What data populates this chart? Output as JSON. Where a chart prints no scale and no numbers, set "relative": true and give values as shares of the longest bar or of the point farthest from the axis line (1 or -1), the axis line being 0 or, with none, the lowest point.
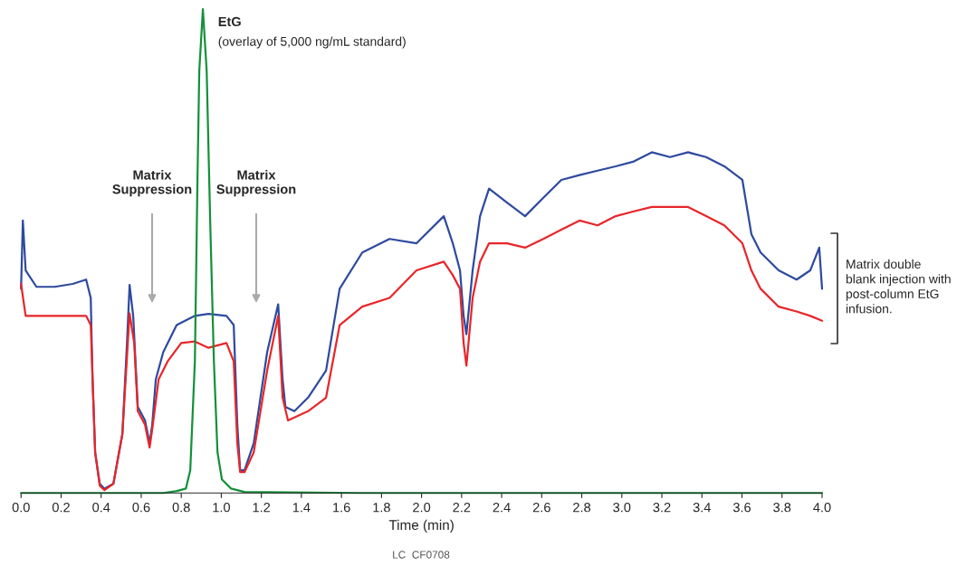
{
  "chart_data": {
    "type": "line",
    "relative": true,
    "xlabel": "Time (min)",
    "xlim": [
      0,
      4
    ],
    "xticks": [
      {
        "value": 0,
        "label": "0.0"
      },
      {
        "value": 0.2,
        "label": "0.2"
      },
      {
        "value": 0.4,
        "label": "0.4"
      },
      {
        "value": 0.6,
        "label": "0.6"
      },
      {
        "value": 0.8,
        "label": "0.8"
      },
      {
        "value": 1,
        "label": "1.0"
      },
      {
        "value": 1.2,
        "label": "1.2"
      },
      {
        "value": 1.4,
        "label": "1.4"
      },
      {
        "value": 1.6,
        "label": "1.6"
      },
      {
        "value": 1.8,
        "label": "1.8"
      },
      {
        "value": 2,
        "label": "2.0"
      },
      {
        "value": 2.2,
        "label": "2.2"
      },
      {
        "value": 2.4,
        "label": "2.4"
      },
      {
        "value": 2.6,
        "label": "2.6"
      },
      {
        "value": 2.8,
        "label": "2.8"
      },
      {
        "value": 3,
        "label": "3.0"
      },
      {
        "value": 3.2,
        "label": "3.2"
      },
      {
        "value": 3.4,
        "label": "3.4"
      },
      {
        "value": 3.6,
        "label": "3.6"
      },
      {
        "value": 3.8,
        "label": "3.8"
      },
      {
        "value": 4,
        "label": "4.0"
      }
    ],
    "grid": false,
    "legend": false,
    "tick_labels": "x",
    "series": [
      {
        "color": "#2e4a9e",
        "x": [
          0.0,
          0.009,
          0.023,
          0.077,
          0.167,
          0.258,
          0.325,
          0.348,
          0.357,
          0.37,
          0.393,
          0.416,
          0.461,
          0.506,
          0.529,
          0.542,
          0.56,
          0.583,
          0.619,
          0.642,
          0.655,
          0.673,
          0.71,
          0.777,
          0.868,
          0.936,
          1.026,
          1.062,
          1.08,
          1.094,
          1.116,
          1.162,
          1.229,
          1.284,
          1.306,
          1.32,
          1.365,
          1.433,
          1.523,
          1.591,
          1.704,
          1.84,
          1.975,
          2.111,
          2.156,
          2.192,
          2.21,
          2.224,
          2.255,
          2.292,
          2.337,
          2.427,
          2.517,
          2.608,
          2.698,
          2.789,
          2.879,
          2.969,
          3.06,
          3.15,
          3.241,
          3.331,
          3.421,
          3.512,
          3.602,
          3.647,
          3.693,
          3.783,
          3.873,
          3.941,
          3.986,
          4.0
        ],
        "values": [
          0.422,
          0.563,
          0.46,
          0.426,
          0.426,
          0.432,
          0.441,
          0.403,
          0.235,
          0.084,
          0.019,
          0.009,
          0.019,
          0.122,
          0.31,
          0.43,
          0.366,
          0.178,
          0.15,
          0.103,
          0.141,
          0.235,
          0.291,
          0.347,
          0.366,
          0.37,
          0.366,
          0.347,
          0.141,
          0.047,
          0.047,
          0.103,
          0.291,
          0.39,
          0.235,
          0.178,
          0.169,
          0.197,
          0.253,
          0.422,
          0.497,
          0.525,
          0.516,
          0.572,
          0.516,
          0.46,
          0.366,
          0.328,
          0.46,
          0.572,
          0.629,
          0.6,
          0.572,
          0.61,
          0.647,
          0.657,
          0.666,
          0.675,
          0.685,
          0.704,
          0.694,
          0.704,
          0.694,
          0.675,
          0.647,
          0.535,
          0.497,
          0.46,
          0.441,
          0.46,
          0.507,
          0.422
        ]
      },
      {
        "color": "#e8262a",
        "x": [
          0.0,
          0.023,
          0.167,
          0.325,
          0.348,
          0.37,
          0.393,
          0.416,
          0.461,
          0.506,
          0.542,
          0.565,
          0.583,
          0.619,
          0.642,
          0.655,
          0.687,
          0.732,
          0.8,
          0.868,
          0.936,
          1.026,
          1.062,
          1.08,
          1.094,
          1.116,
          1.162,
          1.229,
          1.284,
          1.306,
          1.333,
          1.433,
          1.523,
          1.591,
          1.704,
          1.84,
          1.975,
          2.111,
          2.156,
          2.192,
          2.21,
          2.224,
          2.255,
          2.292,
          2.337,
          2.427,
          2.517,
          2.608,
          2.698,
          2.789,
          2.879,
          2.969,
          3.06,
          3.15,
          3.241,
          3.331,
          3.421,
          3.512,
          3.602,
          3.647,
          3.693,
          3.783,
          3.873,
          3.941,
          4.0
        ],
        "values": [
          0.432,
          0.366,
          0.366,
          0.366,
          0.347,
          0.084,
          0.015,
          0.006,
          0.019,
          0.122,
          0.371,
          0.31,
          0.169,
          0.141,
          0.094,
          0.131,
          0.235,
          0.272,
          0.31,
          0.313,
          0.3,
          0.31,
          0.272,
          0.103,
          0.043,
          0.043,
          0.084,
          0.253,
          0.366,
          0.197,
          0.15,
          0.169,
          0.197,
          0.347,
          0.385,
          0.403,
          0.46,
          0.478,
          0.45,
          0.422,
          0.31,
          0.263,
          0.403,
          0.478,
          0.516,
          0.516,
          0.507,
          0.525,
          0.544,
          0.563,
          0.553,
          0.572,
          0.582,
          0.591,
          0.591,
          0.591,
          0.572,
          0.553,
          0.516,
          0.46,
          0.422,
          0.385,
          0.375,
          0.366,
          0.356
        ]
      },
      {
        "color": "#14913a",
        "x": [
          0.0,
          0.71,
          0.777,
          0.823,
          0.845,
          0.868,
          0.881,
          0.89,
          0.908,
          0.927,
          0.945,
          0.963,
          0.981,
          1.003,
          1.049,
          1.116,
          1.704,
          4.0
        ],
        "values": [
          0,
          0,
          0.004,
          0.009,
          0.047,
          0.272,
          0.647,
          0.872,
          1.0,
          0.872,
          0.553,
          0.272,
          0.084,
          0.028,
          0.009,
          0.002,
          0,
          0
        ]
      }
    ],
    "annotations": [
      {
        "text": "EtG\n(overlay of 5,000 ng/mL standard)",
        "x": 0.908,
        "y": 1.0
      },
      "Matrix\nSuppression",
      "Matrix\nSuppression",
      "Matrix double\nblank injection with\npost-column EtG\ninfusion.",
      "LC  CF0708"
    ]
  }
}
